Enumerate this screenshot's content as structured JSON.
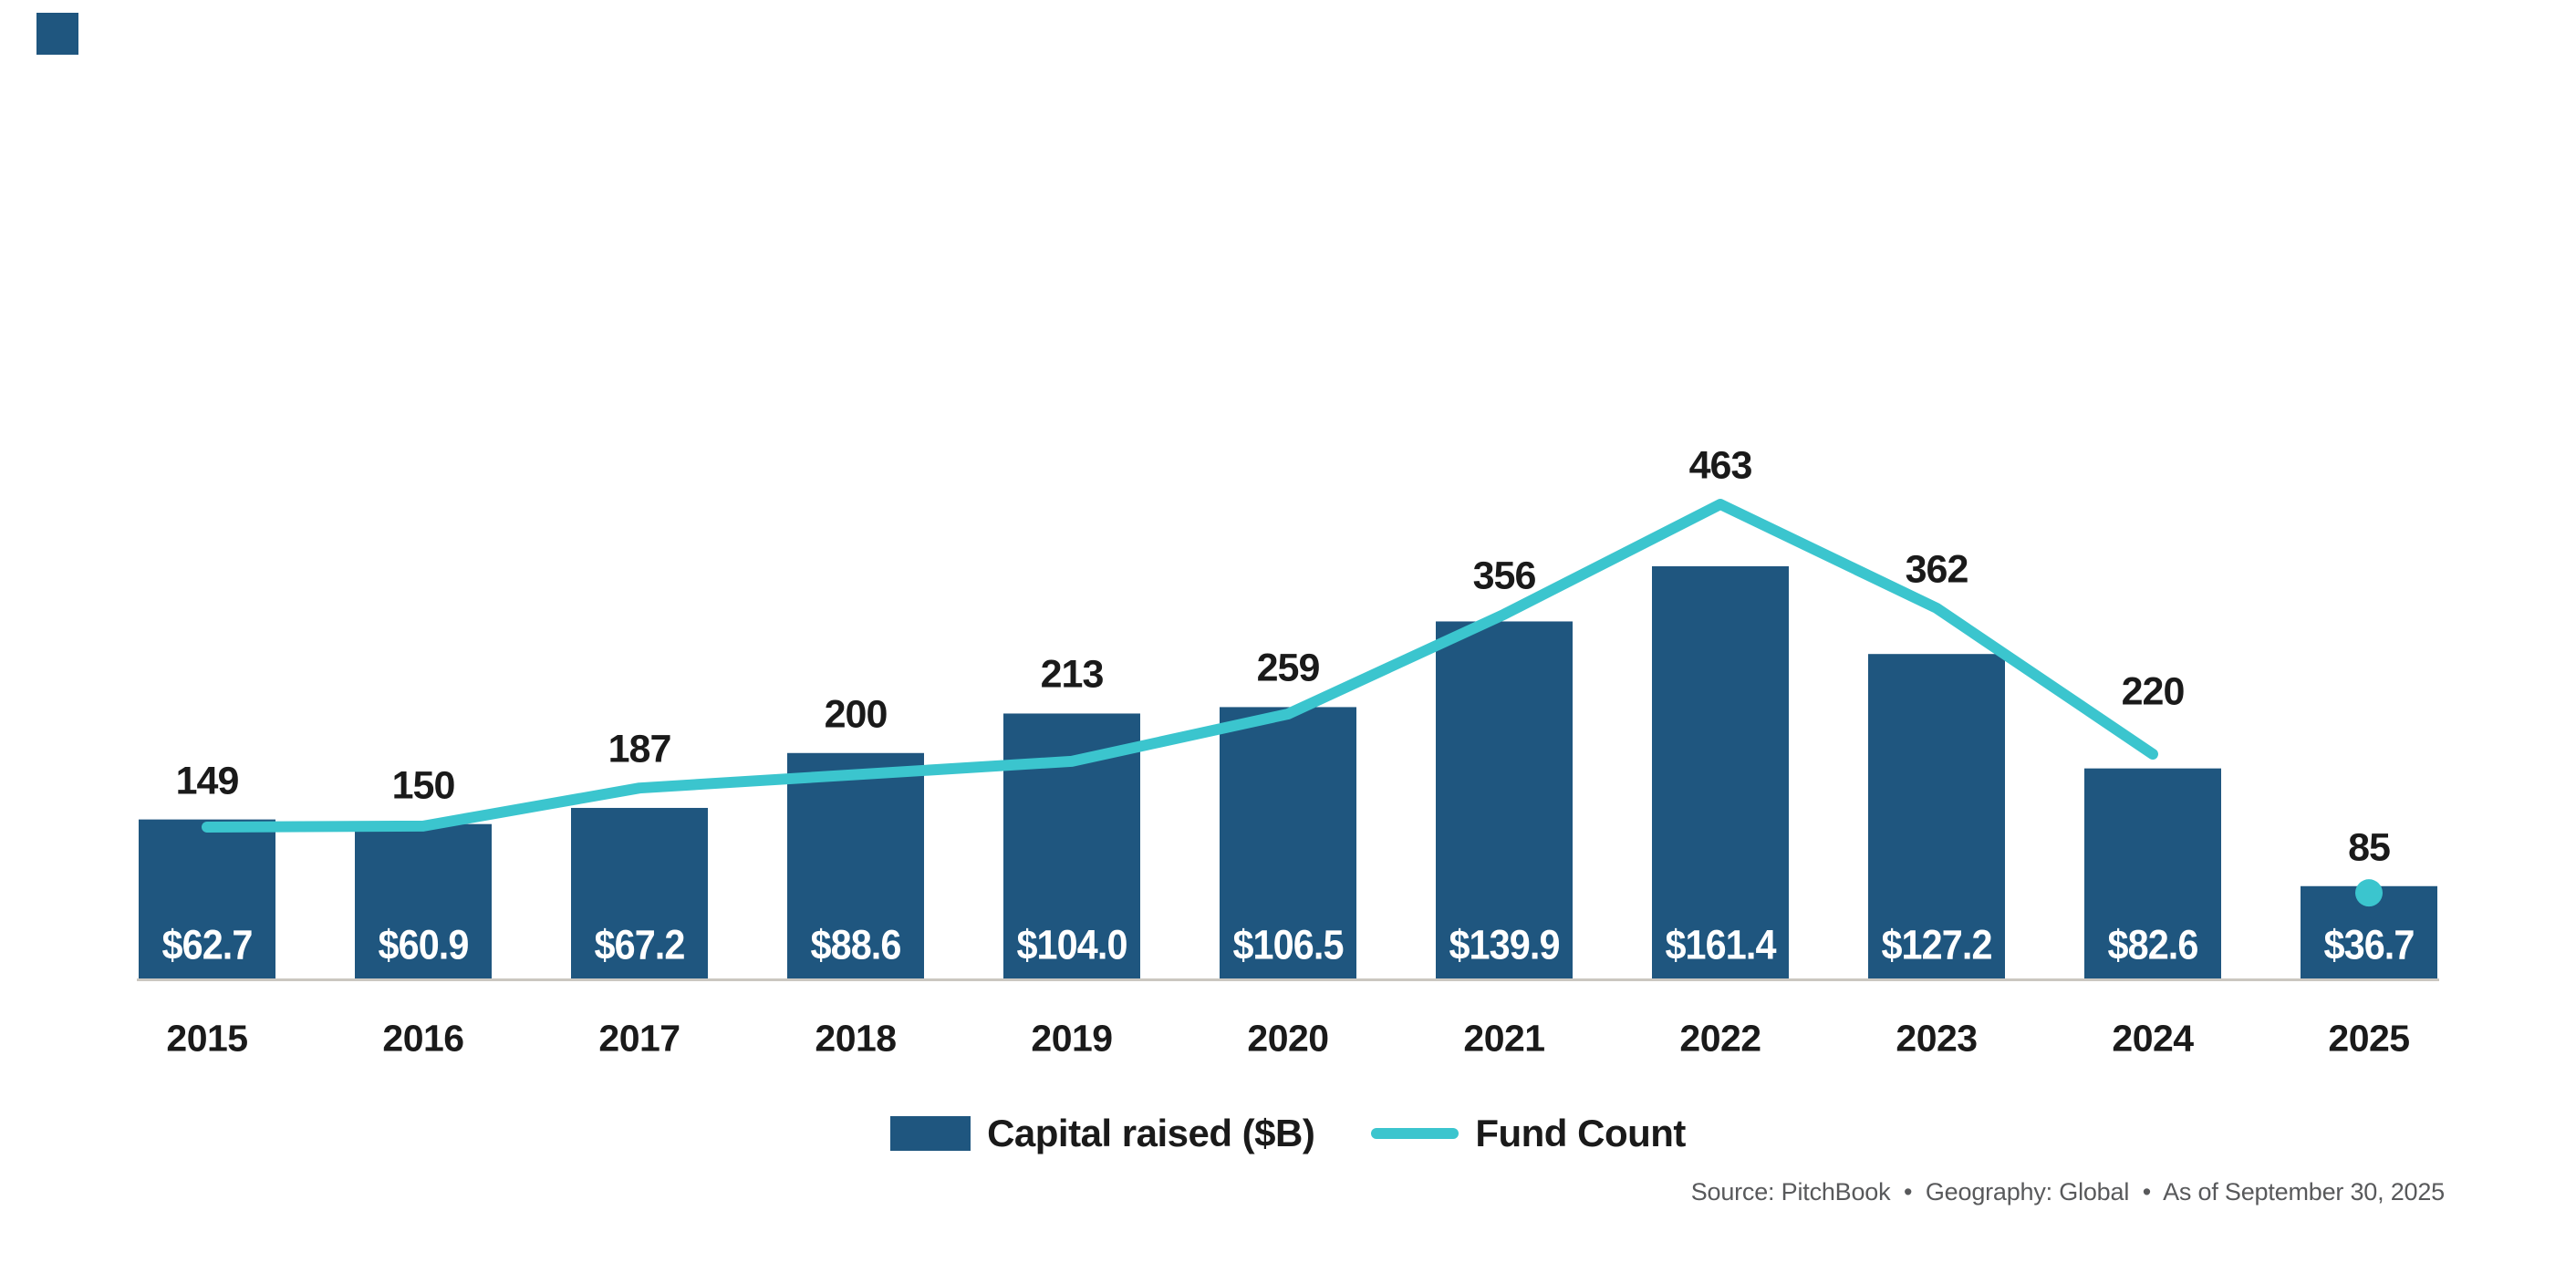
{
  "chart_data": {
    "type": "combo",
    "title": "",
    "categories": [
      "2015",
      "2016",
      "2017",
      "2018",
      "2019",
      "2020",
      "2021",
      "2022",
      "2023",
      "2024",
      "2025"
    ],
    "series": [
      {
        "name": "Capital raised ($B)",
        "type": "bar",
        "values": [
          62.7,
          60.9,
          67.2,
          88.6,
          104.0,
          106.5,
          139.9,
          161.4,
          127.2,
          82.6,
          36.7
        ],
        "labels": [
          "$62.7",
          "$60.9",
          "$67.2",
          "$88.6",
          "$104.0",
          "$106.5",
          "$139.9",
          "$161.4",
          "$127.2",
          "$82.6",
          "$36.7"
        ],
        "label_position": "inside-bottom"
      },
      {
        "name": "Fund Count",
        "type": "line",
        "values": [
          149,
          150,
          187,
          200,
          213,
          259,
          356,
          463,
          362,
          220,
          85
        ],
        "labels": [
          "149",
          "150",
          "187",
          "200",
          "213",
          "259",
          "356",
          "463",
          "362",
          "220",
          "85"
        ],
        "label_position": "above",
        "note": "line drawn 2015-2024; 2025 value shown as a detached dot marker on top of the 2025 bar"
      }
    ],
    "xlabel": "",
    "ylabel": "",
    "ylim_bar": [
      0,
      170
    ],
    "ylim_line": [
      0,
      480
    ],
    "grid": "off",
    "legend_position": "bottom-center",
    "baseline_axis": "single light gray horizontal line at y=0"
  },
  "legend": {
    "items": [
      {
        "label": "Capital raised ($B)",
        "swatch": "navy-rectangle"
      },
      {
        "label": "Fund Count",
        "swatch": "teal-line"
      }
    ]
  },
  "footer": {
    "source_note": "Source: PitchBook  •  Geography: Global  •  As of September 30, 2025"
  },
  "colors": {
    "background": "#FFFFFF",
    "bar_navy": "#1F567F",
    "line_teal": "#3BC5CE",
    "axis_gray": "#CBC7C0",
    "text_dark": "#1A1A1A",
    "bar_value_text": "#FFFFFF",
    "source_gray": "#58595B"
  }
}
